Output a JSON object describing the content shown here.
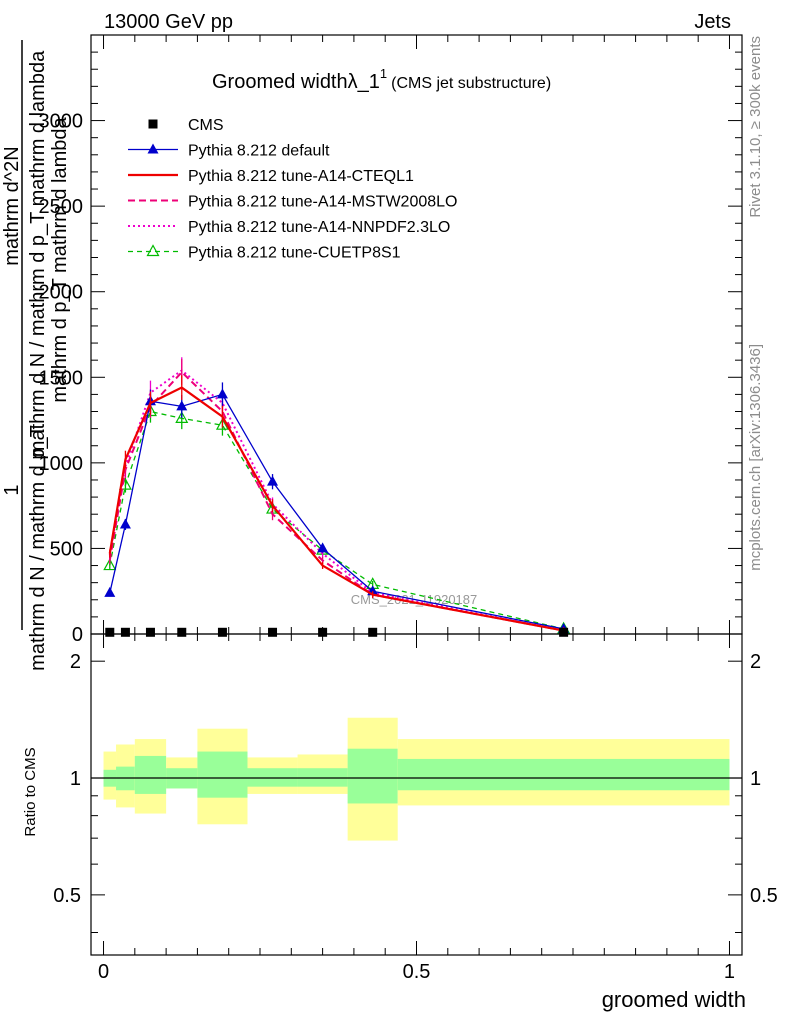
{
  "header": {
    "left": "13000 GeV pp",
    "right": "Jets"
  },
  "side": {
    "rivet": "Rivet 3.1.10, ≥ 300k events",
    "mcplots": "mcplots.cern.ch [arXiv:1306.3436]"
  },
  "main_title": {
    "text": "Groomed widthλ_1",
    "sup": "1",
    "sub": "(CMS jet substructure)"
  },
  "yaxis": {
    "numerator_one": "1",
    "denominator_top": "mathrm d N / mathrm d p_T",
    "long_fraction": "mathrm d N / mathrm d p_T mathrm d lambda",
    "numerator_long": "mathrm d^2N",
    "denominator_long": "mathrm d p_T mathrm d lambda",
    "ratio_label": "Ratio to CMS"
  },
  "xaxis": {
    "label": "groomed width"
  },
  "watermark": "CMS_2021_I1920187",
  "legend": [
    {
      "label": "CMS",
      "color": "#000000"
    },
    {
      "label": "Pythia 8.212 default",
      "color": "#0000cc"
    },
    {
      "label": "Pythia 8.212 tune-A14-CTEQL1",
      "color": "#ee0000"
    },
    {
      "label": "Pythia 8.212 tune-A14-MSTW2008LO",
      "color": "#ee0077"
    },
    {
      "label": "Pythia 8.212 tune-A14-NNPDF2.3LO",
      "color": "#ee00cc"
    },
    {
      "label": "Pythia 8.212 tune-CUETP8S1",
      "color": "#00bb00"
    }
  ],
  "chart_data": {
    "type": "line",
    "title": "Groomed widthλ_1^1 (CMS jet substructure)",
    "xlabel": "groomed width",
    "ylabel": "1/(dN/dpT) d^2N/(dpT dlambda)",
    "xlim": [
      -0.02,
      1.02
    ],
    "ylim": [
      0,
      3500
    ],
    "x_ticks": [
      0,
      0.5,
      1
    ],
    "x_tick_labels": [
      "0",
      "0.5",
      "1"
    ],
    "y_ticks": [
      0,
      500,
      1000,
      1500,
      2000,
      2500,
      3000
    ],
    "y_tick_labels": [
      "0",
      "500",
      "1000",
      "1500",
      "2000",
      "2500",
      "3000"
    ],
    "x": [
      0.01,
      0.035,
      0.075,
      0.125,
      0.19,
      0.27,
      0.35,
      0.43,
      0.735
    ],
    "series": [
      {
        "name": "CMS",
        "marker": "square",
        "values": [
          10,
          10,
          10,
          10,
          10,
          10,
          10,
          10,
          10
        ]
      },
      {
        "name": "Pythia 8.212 default",
        "marker": "triangle-filled",
        "dash": "",
        "values": [
          240,
          640,
          1360,
          1330,
          1400,
          890,
          500,
          250,
          30
        ]
      },
      {
        "name": "Pythia 8.212 tune-A14-CTEQL1",
        "marker": "none",
        "dash": "",
        "values": [
          470,
          1020,
          1350,
          1440,
          1270,
          750,
          400,
          230,
          20
        ]
      },
      {
        "name": "Pythia 8.212 tune-A14-MSTW2008LO",
        "marker": "none",
        "dash": "7,4",
        "values": [
          430,
          960,
          1330,
          1530,
          1300,
          700,
          430,
          230,
          20
        ]
      },
      {
        "name": "Pythia 8.212 tune-A14-NNPDF2.3LO",
        "marker": "none",
        "dash": "2,3",
        "values": [
          460,
          980,
          1410,
          1540,
          1350,
          760,
          470,
          240,
          20
        ]
      },
      {
        "name": "Pythia 8.212 tune-CUETP8S1",
        "marker": "triangle-open",
        "dash": "5,4",
        "values": [
          400,
          870,
          1300,
          1260,
          1220,
          730,
          490,
          290,
          30
        ]
      }
    ],
    "ratio_panel": {
      "ylabel": "Ratio to CMS",
      "ylim": [
        0.35,
        2.35
      ],
      "y_ticks": [
        0.5,
        1,
        2
      ],
      "y_tick_labels": [
        "0.5",
        "1",
        "2"
      ],
      "bands": [
        {
          "x0": 0.0,
          "x1": 0.02,
          "inner": [
            0.95,
            1.05
          ],
          "outer": [
            0.88,
            1.17
          ]
        },
        {
          "x0": 0.02,
          "x1": 0.05,
          "inner": [
            0.93,
            1.07
          ],
          "outer": [
            0.84,
            1.22
          ]
        },
        {
          "x0": 0.05,
          "x1": 0.1,
          "inner": [
            0.91,
            1.14
          ],
          "outer": [
            0.81,
            1.26
          ]
        },
        {
          "x0": 0.1,
          "x1": 0.15,
          "inner": [
            0.94,
            1.06
          ],
          "outer": [
            0.94,
            1.13
          ]
        },
        {
          "x0": 0.15,
          "x1": 0.23,
          "inner": [
            0.89,
            1.17
          ],
          "outer": [
            0.76,
            1.34
          ]
        },
        {
          "x0": 0.23,
          "x1": 0.31,
          "inner": [
            0.95,
            1.06
          ],
          "outer": [
            0.91,
            1.13
          ]
        },
        {
          "x0": 0.31,
          "x1": 0.39,
          "inner": [
            0.95,
            1.06
          ],
          "outer": [
            0.91,
            1.15
          ]
        },
        {
          "x0": 0.39,
          "x1": 0.47,
          "inner": [
            0.86,
            1.19
          ],
          "outer": [
            0.69,
            1.43
          ]
        },
        {
          "x0": 0.47,
          "x1": 1.0,
          "inner": [
            0.93,
            1.12
          ],
          "outer": [
            0.85,
            1.26
          ]
        }
      ]
    }
  }
}
